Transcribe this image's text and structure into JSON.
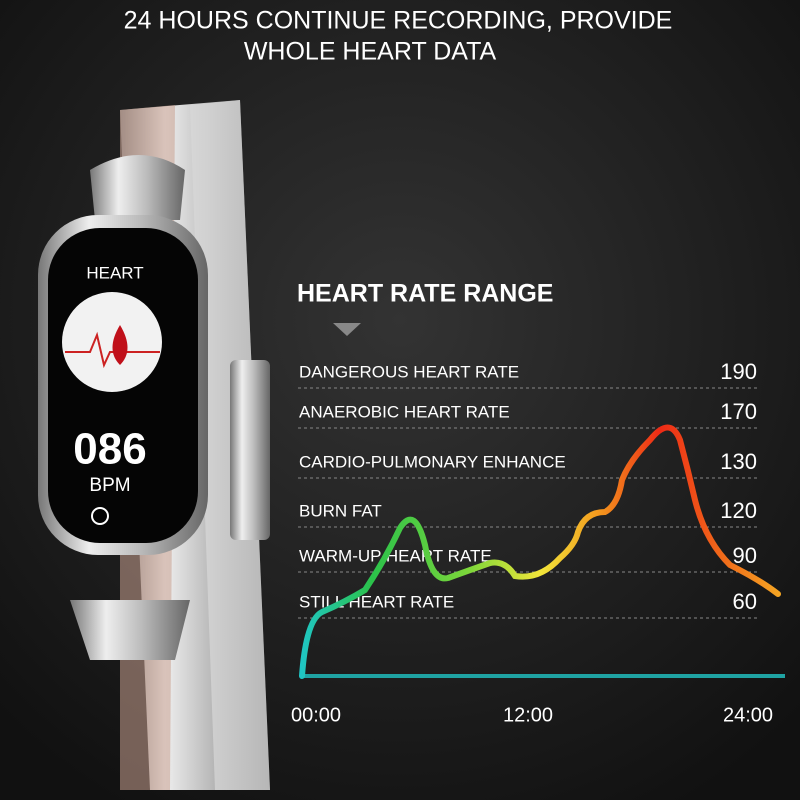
{
  "header": {
    "lines": [
      "24 HOURS CONTINUE RECORDING, PROVIDE",
      "WHOLE HEART DATA"
    ]
  },
  "watch": {
    "screen_title": "HEART",
    "reading": "086",
    "unit": "BPM"
  },
  "range": {
    "title": "HEART RATE RANGE",
    "zones": [
      {
        "label": "DANGEROUS HEART RATE",
        "value": 190
      },
      {
        "label": "ANAEROBIC HEART RATE",
        "value": 170
      },
      {
        "label": "CARDIO-PULMONARY ENHANCE",
        "value": 130
      },
      {
        "label": "BURN FAT",
        "value": 120
      },
      {
        "label": "WARM-UP HEART RATE",
        "value": 90
      },
      {
        "label": "STILL HEART RATE",
        "value": 60
      }
    ]
  },
  "time_axis": [
    "00:00",
    "12:00",
    "24:00"
  ]
}
